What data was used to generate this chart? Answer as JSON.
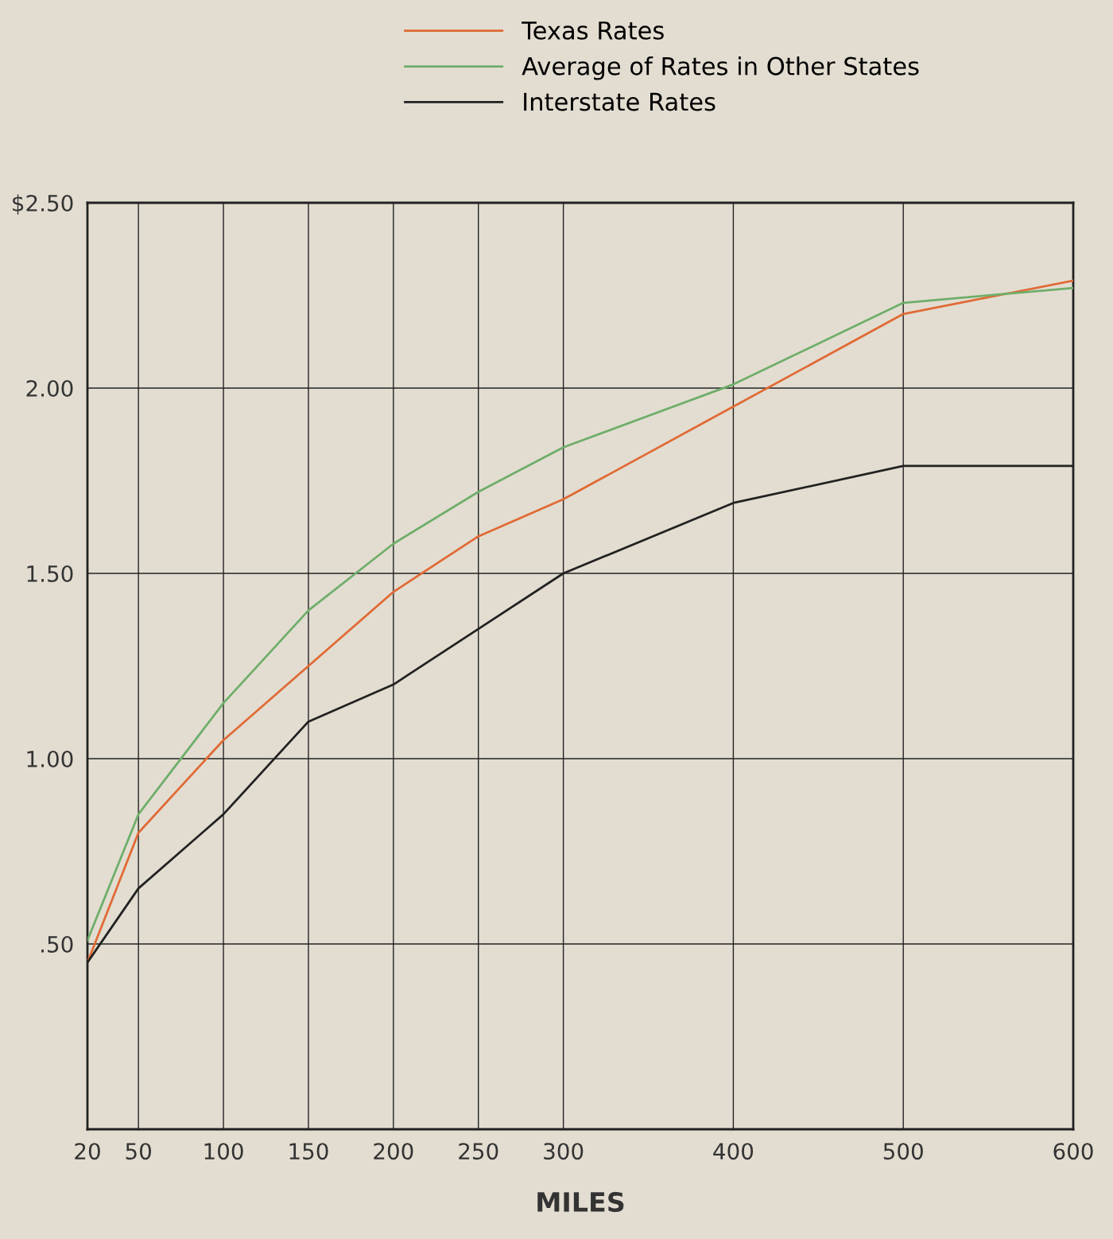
{
  "chart_data": {
    "type": "line",
    "xlabel": "MILES",
    "x": [
      20,
      50,
      100,
      150,
      200,
      250,
      300,
      400,
      500,
      600
    ],
    "series": [
      {
        "name": "Texas Rates",
        "color": "#e06a35",
        "values": [
          0.45,
          0.8,
          1.05,
          1.25,
          1.45,
          1.6,
          1.7,
          1.95,
          2.2,
          2.29
        ]
      },
      {
        "name": "Average of Rates in Other States",
        "color": "#6fae6a",
        "values": [
          0.51,
          0.85,
          1.15,
          1.4,
          1.58,
          1.72,
          1.84,
          2.01,
          2.23,
          2.27
        ]
      },
      {
        "name": "Interstate Rates",
        "color": "#222222",
        "values": [
          0.45,
          0.65,
          0.85,
          1.1,
          1.2,
          1.35,
          1.5,
          1.69,
          1.79,
          1.79
        ]
      }
    ],
    "xlim": [
      20,
      600
    ],
    "xticks": [
      20,
      50,
      100,
      150,
      200,
      250,
      300,
      400,
      500,
      600
    ],
    "ylim": [
      0,
      2.5
    ],
    "yticks": [
      {
        "value": 0.5,
        "label": ".50"
      },
      {
        "value": 1.0,
        "label": "1.00"
      },
      {
        "value": 1.5,
        "label": "1.50"
      },
      {
        "value": 2.0,
        "label": "2.00"
      },
      {
        "value": 2.5,
        "label": "$2.50"
      }
    ],
    "grid": true,
    "legend": "top",
    "marker": "none",
    "line_style": "solid"
  }
}
